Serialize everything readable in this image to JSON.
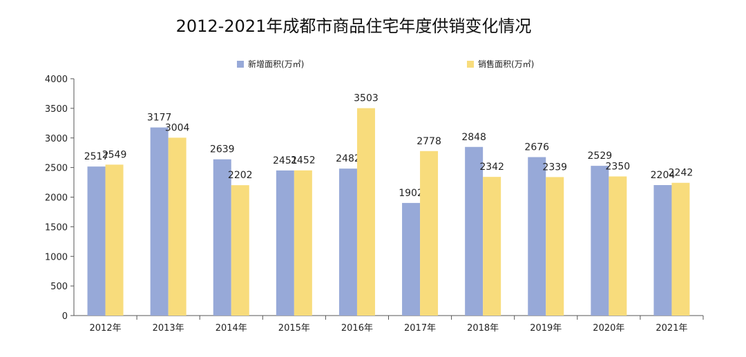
{
  "chart_data": {
    "type": "bar",
    "title": "2012-2021年成都市商品住宅年度供销变化情况",
    "categories": [
      "2012年",
      "2013年",
      "2014年",
      "2015年",
      "2016年",
      "2017年",
      "2018年",
      "2019年",
      "2020年",
      "2021年"
    ],
    "series": [
      {
        "name": "新增面积(万㎡)",
        "color": "#97a9d8",
        "values": [
          2517,
          3177,
          2639,
          2451,
          2482,
          1902,
          2848,
          2676,
          2529,
          2204
        ]
      },
      {
        "name": "销售面积(万㎡)",
        "color": "#f8dc7c",
        "values": [
          2549,
          3004,
          2202,
          2452,
          3503,
          2778,
          2342,
          2339,
          2350,
          2242
        ]
      }
    ],
    "yticks": [
      0,
      500,
      1000,
      1500,
      2000,
      2500,
      3000,
      3500,
      4000
    ],
    "ylim": [
      0,
      4000
    ],
    "legend_position": "top",
    "grid": false
  }
}
